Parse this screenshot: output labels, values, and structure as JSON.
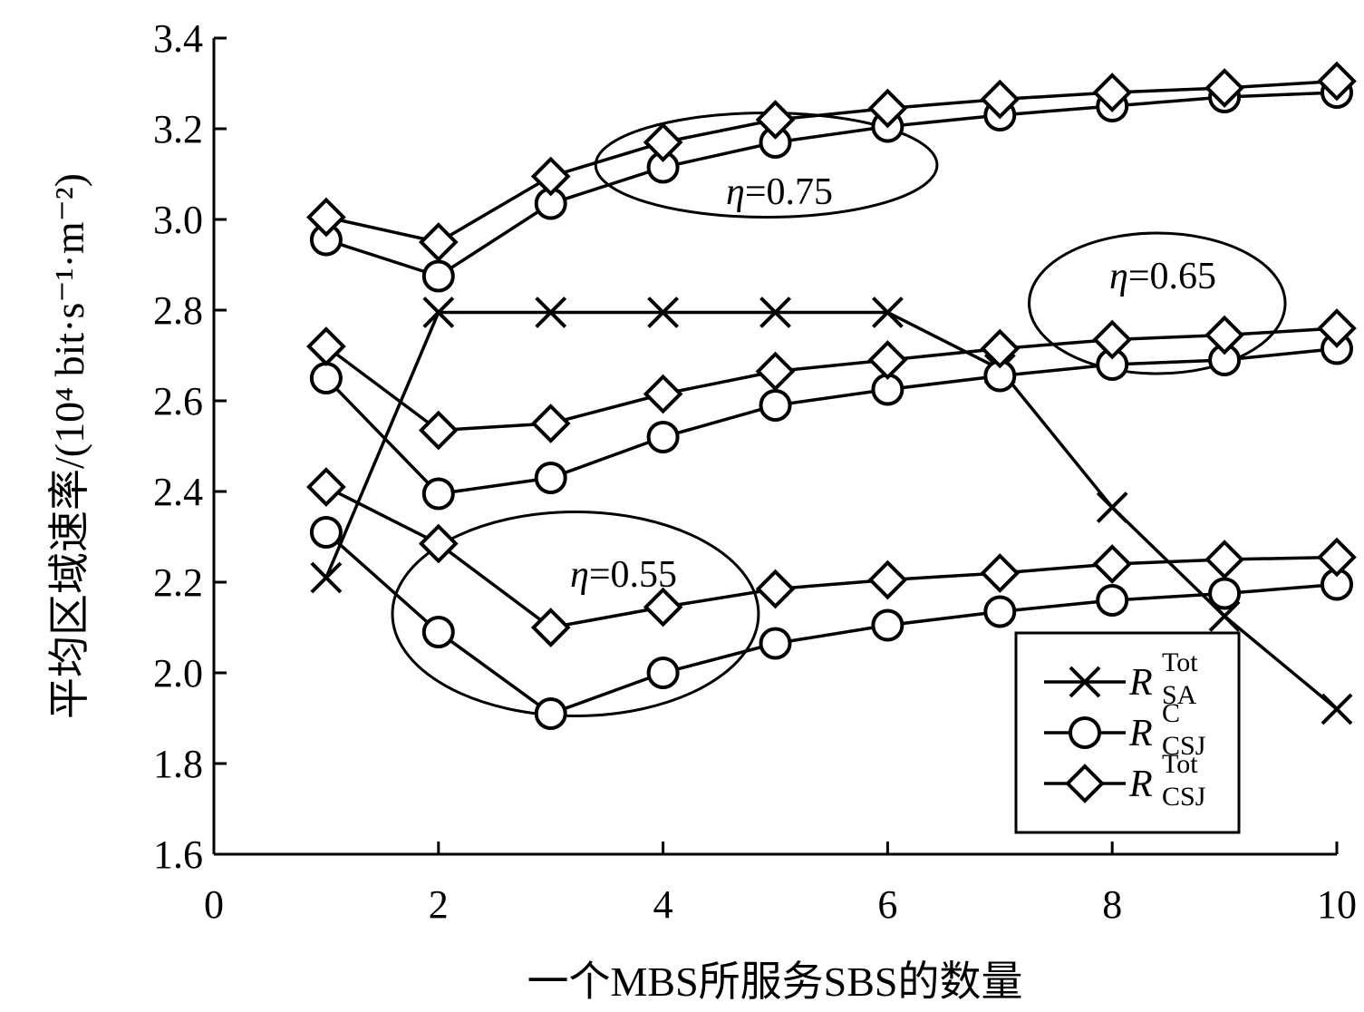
{
  "chart_data": {
    "type": "line",
    "title": "",
    "xlabel": "一个MBS所服务SBS的数量",
    "ylabel": "平均区域速率/(10⁴ bit·s⁻¹·m⁻²)",
    "xlim": [
      0,
      10
    ],
    "ylim": [
      1.6,
      3.4
    ],
    "xticks": [
      "0",
      "2",
      "4",
      "6",
      "8",
      "10"
    ],
    "yticks": [
      "1.6",
      "1.8",
      "2.0",
      "2.2",
      "2.4",
      "2.6",
      "2.8",
      "3.0",
      "3.2",
      "3.4"
    ],
    "grid": false,
    "legend_position": "bottom-right",
    "legend": [
      {
        "base": "R",
        "sup": "Tot",
        "sub": "SA",
        "marker": "x"
      },
      {
        "base": "R",
        "sup": "C",
        "sub": "CSJ",
        "marker": "circle"
      },
      {
        "base": "R",
        "sup": "Tot",
        "sub": "CSJ",
        "marker": "diamond"
      }
    ],
    "x": [
      1,
      2,
      3,
      4,
      5,
      6,
      7,
      8,
      9,
      10
    ],
    "series": [
      {
        "marker": "x",
        "values": [
          2.21,
          2.795,
          2.795,
          2.795,
          2.795,
          2.795,
          2.67,
          2.365,
          2.125,
          1.92
        ]
      },
      {
        "marker": "circle",
        "group": "0.75",
        "values": [
          2.955,
          2.875,
          3.035,
          3.115,
          3.17,
          3.205,
          3.23,
          3.25,
          3.27,
          3.28
        ]
      },
      {
        "marker": "diamond",
        "group": "0.75",
        "values": [
          3.005,
          2.95,
          3.095,
          3.17,
          3.22,
          3.245,
          3.265,
          3.28,
          3.29,
          3.305
        ]
      },
      {
        "marker": "circle",
        "group": "0.65",
        "values": [
          2.65,
          2.395,
          2.43,
          2.52,
          2.59,
          2.625,
          2.655,
          2.68,
          2.69,
          2.715
        ]
      },
      {
        "marker": "diamond",
        "group": "0.65",
        "values": [
          2.72,
          2.535,
          2.55,
          2.615,
          2.665,
          2.69,
          2.715,
          2.735,
          2.745,
          2.76
        ]
      },
      {
        "marker": "circle",
        "group": "0.55",
        "values": [
          2.31,
          2.09,
          1.91,
          2.0,
          2.065,
          2.105,
          2.135,
          2.16,
          2.175,
          2.195
        ]
      },
      {
        "marker": "diamond",
        "group": "0.55",
        "values": [
          2.41,
          2.285,
          2.1,
          2.145,
          2.185,
          2.205,
          2.22,
          2.24,
          2.25,
          2.255
        ]
      }
    ],
    "annotations": [
      {
        "symbol": "η",
        "text": "=0.75",
        "ellipse_center": [
          4.92,
          3.12
        ],
        "ellipse_radii": [
          1.52,
          0.115
        ]
      },
      {
        "symbol": "η",
        "text": "=0.65",
        "ellipse_center": [
          8.4,
          2.815
        ],
        "ellipse_radii": [
          1.14,
          0.155
        ]
      },
      {
        "symbol": "η",
        "text": "=0.55",
        "ellipse_center": [
          3.22,
          2.13
        ],
        "ellipse_radii": [
          1.63,
          0.225
        ]
      }
    ]
  }
}
